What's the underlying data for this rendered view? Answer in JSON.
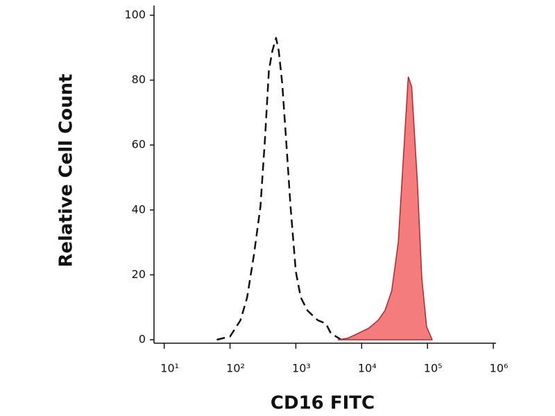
{
  "chart_data": {
    "type": "area",
    "x_label": "CD16 FITC",
    "y_label": "Relative Cell Count",
    "xscale": "log",
    "xlim": [
      7,
      1100000
    ],
    "ylim": [
      -1,
      102
    ],
    "xticks": [
      {
        "value": 10,
        "label": "10¹"
      },
      {
        "value": 100,
        "label": "10²"
      },
      {
        "value": 1000,
        "label": "10³"
      },
      {
        "value": 10000,
        "label": "10⁴"
      },
      {
        "value": 100000,
        "label": "10⁵"
      },
      {
        "value": 1000000,
        "label": "10⁶"
      }
    ],
    "yticks": [
      0,
      20,
      40,
      60,
      80,
      100
    ],
    "series": [
      {
        "color": "#111111",
        "dash": true,
        "filled": false,
        "x": [
          63,
          100,
          144,
          182,
          230,
          290,
          340,
          390,
          440,
          500,
          550,
          620,
          710,
          830,
          1000,
          1190,
          1500,
          2150,
          2850,
          3400,
          4900
        ],
        "values": [
          0,
          1,
          6,
          13,
          26,
          41,
          62,
          83,
          89,
          93,
          89,
          79,
          62,
          41,
          21,
          13,
          9,
          6,
          5,
          2,
          0
        ]
      },
      {
        "color": "#b3262b",
        "fill": "#f47c7c",
        "dash": false,
        "filled": true,
        "x": [
          4400,
          6200,
          8900,
          12700,
          17800,
          22600,
          28600,
          36000,
          43600,
          51000,
          57500,
          70000,
          82000,
          97000,
          118000
        ],
        "values": [
          0,
          0.5,
          2,
          3.5,
          6,
          9,
          15,
          30,
          58,
          81,
          78,
          49,
          19,
          4,
          0
        ]
      }
    ]
  }
}
